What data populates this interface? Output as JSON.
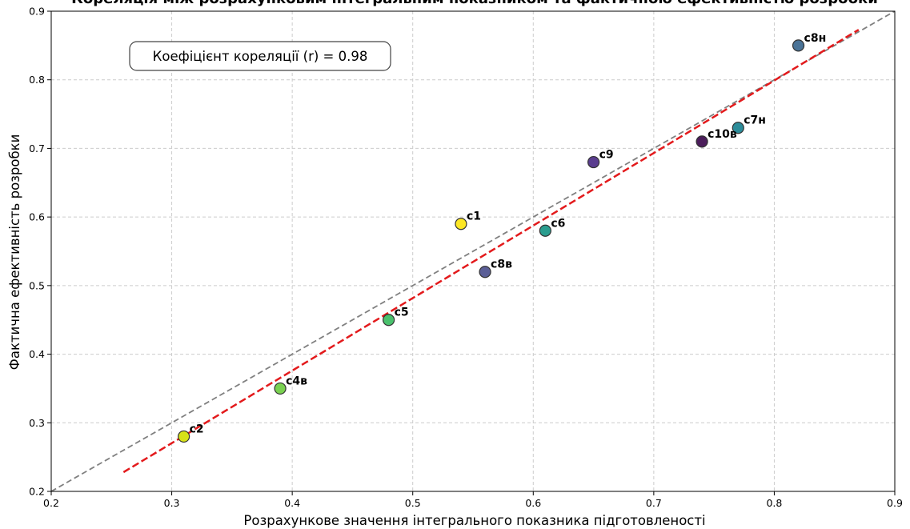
{
  "chart_data": {
    "type": "scatter",
    "title": "Кореляція між розрахунковим інтегральним показником та фактичною ефективністю розробки",
    "xlabel": "Розрахункове значення інтегрального показника підготовленості",
    "ylabel": "Фактична ефективність розробки",
    "xlim": [
      0.2,
      0.9
    ],
    "ylim": [
      0.2,
      0.9
    ],
    "x_ticks": [
      "0.2",
      "0.3",
      "0.4",
      "0.5",
      "0.6",
      "0.7",
      "0.8",
      "0.9"
    ],
    "y_ticks": [
      "0.2",
      "0.3",
      "0.4",
      "0.5",
      "0.6",
      "0.7",
      "0.8",
      "0.9"
    ],
    "grid": true,
    "annotation": "Коефіцієнт кореляції (r) = 0.98",
    "points": [
      {
        "label": "c1",
        "x": 0.54,
        "y": 0.59,
        "color": "#fde725"
      },
      {
        "label": "c2",
        "x": 0.31,
        "y": 0.28,
        "color": "#d8e219"
      },
      {
        "label": "c4в",
        "x": 0.39,
        "y": 0.35,
        "color": "#7ad151"
      },
      {
        "label": "c5",
        "x": 0.48,
        "y": 0.45,
        "color": "#4ac16d"
      },
      {
        "label": "c6",
        "x": 0.61,
        "y": 0.58,
        "color": "#2a9d8f"
      },
      {
        "label": "c7н",
        "x": 0.77,
        "y": 0.73,
        "color": "#2c8c99"
      },
      {
        "label": "c8в",
        "x": 0.56,
        "y": 0.52,
        "color": "#5b5f97"
      },
      {
        "label": "c8н",
        "x": 0.82,
        "y": 0.85,
        "color": "#4a7397"
      },
      {
        "label": "c9",
        "x": 0.65,
        "y": 0.68,
        "color": "#5a3d8f"
      },
      {
        "label": "c10в",
        "x": 0.74,
        "y": 0.71,
        "color": "#4b1d5b"
      }
    ],
    "reference_line": {
      "x1": 0.2,
      "y1": 0.2,
      "x2": 0.9,
      "y2": 0.9,
      "color": "#808080",
      "style": "dashed"
    },
    "regression_line": {
      "x1": 0.26,
      "y1": 0.228,
      "x2": 0.87,
      "y2": 0.873,
      "color": "#e31a1c",
      "style": "dashed"
    }
  }
}
